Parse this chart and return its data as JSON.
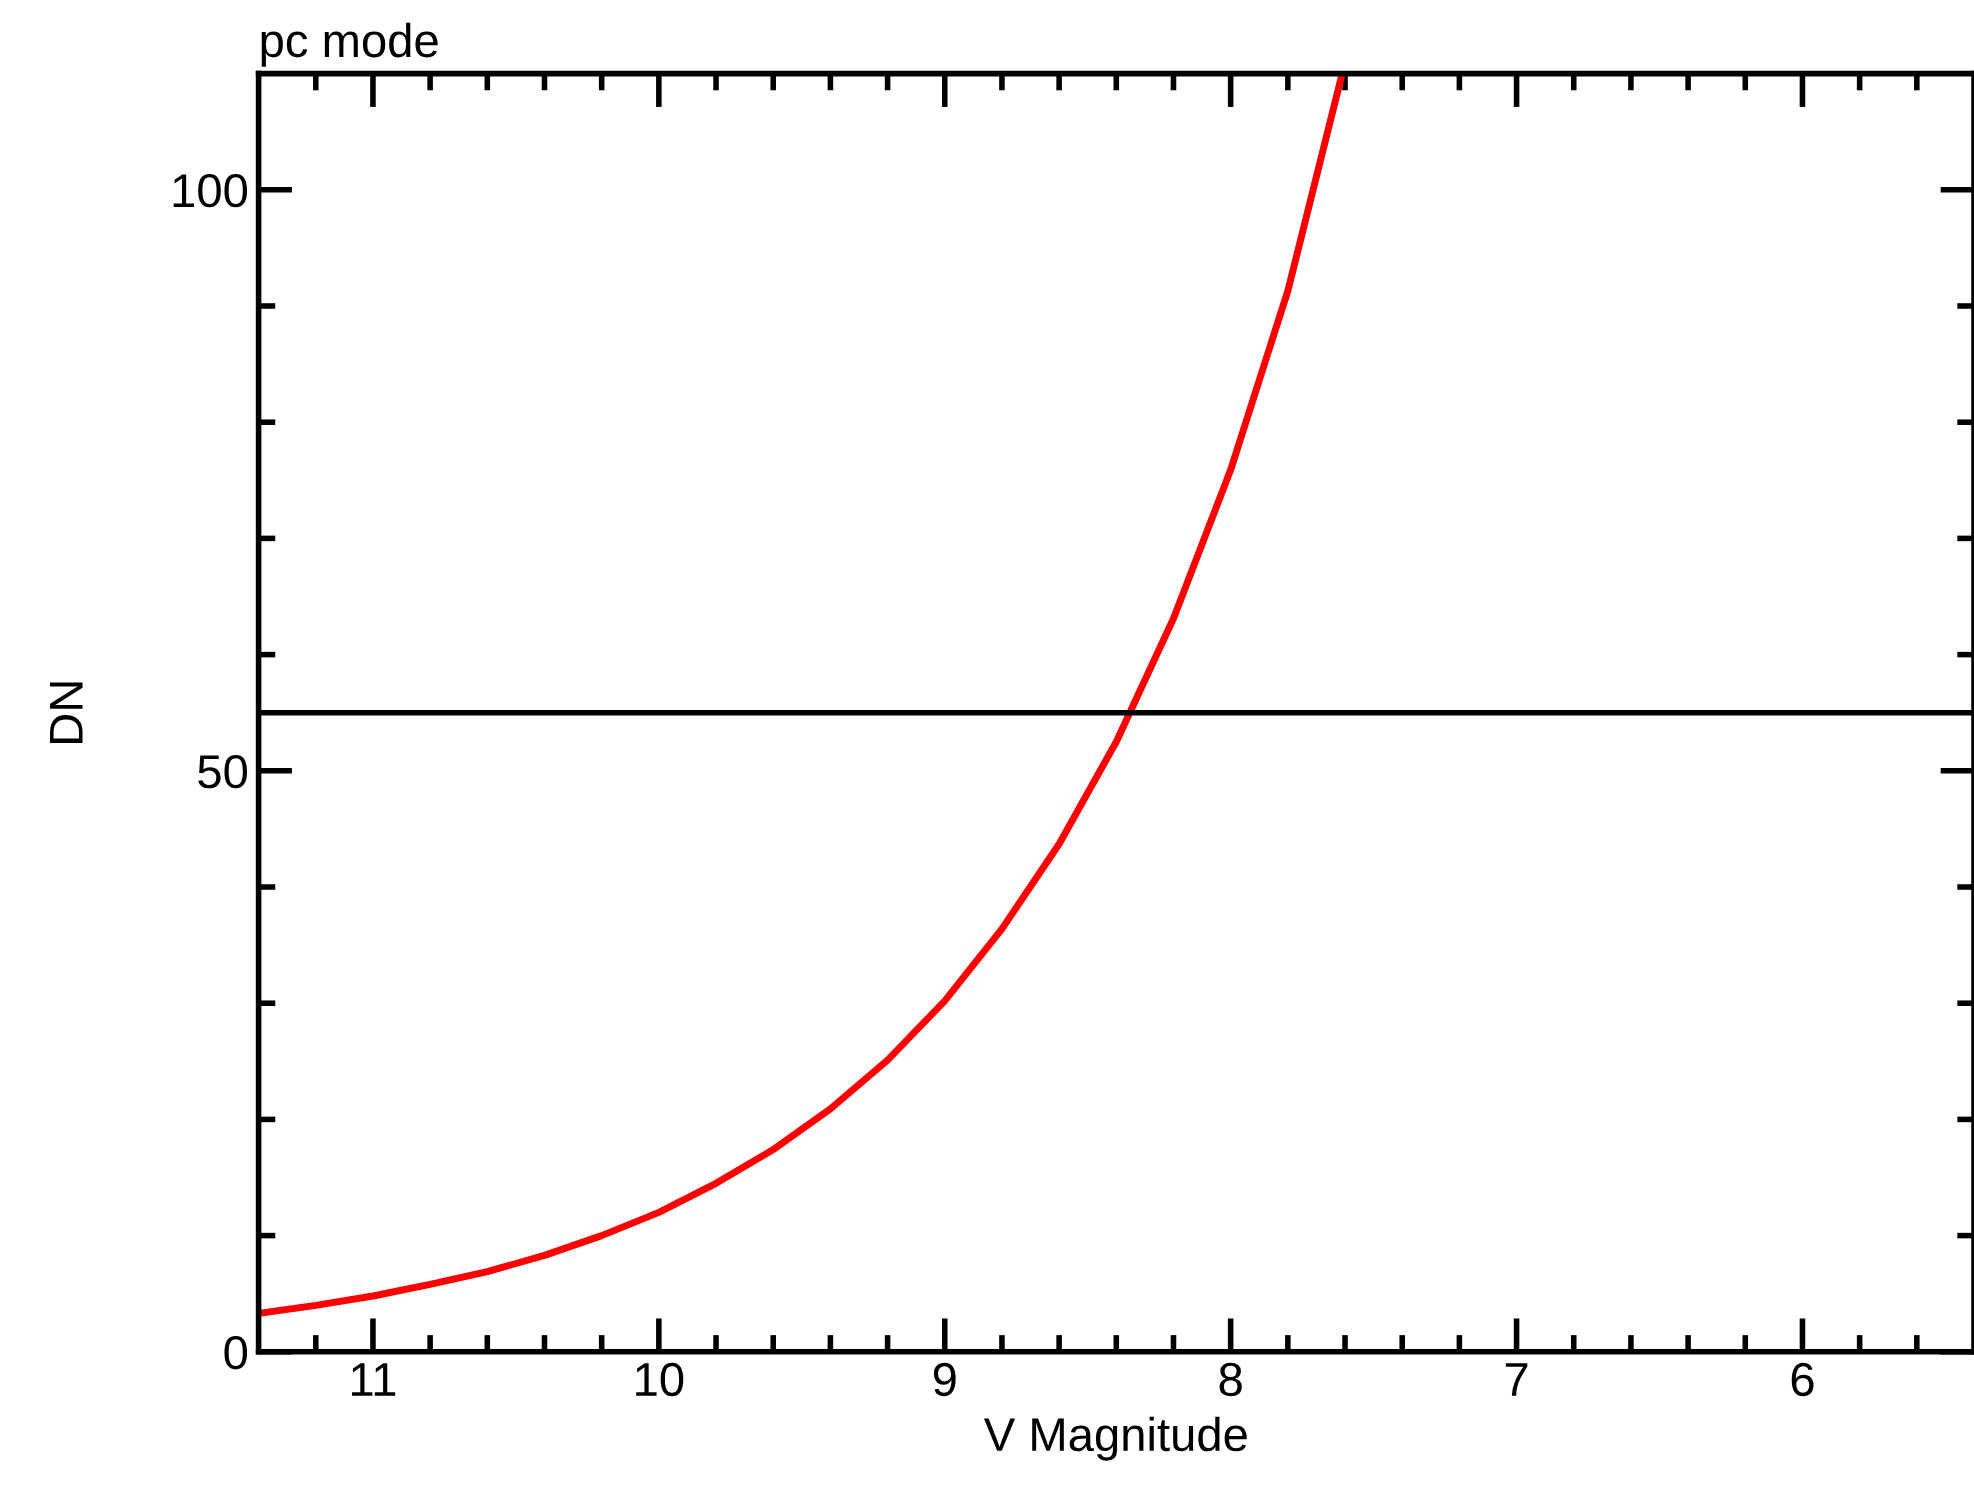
{
  "chart_data": {
    "type": "line",
    "title": "pc mode",
    "xlabel": "V Magnitude",
    "ylabel": "DN",
    "x": [
      11.4,
      11.2,
      11.0,
      10.8,
      10.6,
      10.4,
      10.2,
      10.0,
      9.8,
      9.6,
      9.4,
      9.2,
      9.0,
      8.8,
      8.6,
      8.4,
      8.2,
      8.0,
      7.8,
      7.61
    ],
    "series": [
      {
        "color": "#ff0000",
        "values": [
          3.3,
          4.0,
          4.8,
          5.8,
          6.9,
          8.3,
          10.0,
          12.0,
          14.5,
          17.4,
          20.9,
          25.1,
          30.2,
          36.4,
          43.7,
          52.5,
          63.1,
          75.9,
          91.3,
          110
        ]
      }
    ],
    "xlim": [
      11.4,
      5.4
    ],
    "ylim": [
      0,
      110
    ],
    "xticks": [
      {
        "value": 11.2,
        "label": null
      },
      11,
      {
        "value": 10.8,
        "label": null
      },
      {
        "value": 10.6,
        "label": null
      },
      {
        "value": 10.4,
        "label": null
      },
      {
        "value": 10.2,
        "label": null
      },
      10,
      {
        "value": 9.8,
        "label": null
      },
      {
        "value": 9.6,
        "label": null
      },
      {
        "value": 9.4,
        "label": null
      },
      {
        "value": 9.2,
        "label": null
      },
      9,
      {
        "value": 8.8,
        "label": null
      },
      {
        "value": 8.6,
        "label": null
      },
      {
        "value": 8.4,
        "label": null
      },
      {
        "value": 8.2,
        "label": null
      },
      8,
      {
        "value": 7.8,
        "label": null
      },
      {
        "value": 7.6,
        "label": null
      },
      {
        "value": 7.4,
        "label": null
      },
      {
        "value": 7.2,
        "label": null
      },
      7,
      {
        "value": 6.8,
        "label": null
      },
      {
        "value": 6.6,
        "label": null
      },
      {
        "value": 6.4,
        "label": null
      },
      {
        "value": 6.2,
        "label": null
      },
      6,
      {
        "value": 5.8,
        "label": null
      },
      {
        "value": 5.6,
        "label": null
      }
    ],
    "yticks": [
      0,
      {
        "value": 10,
        "label": null
      },
      {
        "value": 20,
        "label": null
      },
      {
        "value": 30,
        "label": null
      },
      {
        "value": 40,
        "label": null
      },
      50,
      {
        "value": 60,
        "label": null
      },
      {
        "value": 70,
        "label": null
      },
      {
        "value": 80,
        "label": null
      },
      {
        "value": 90,
        "label": null
      },
      100
    ],
    "ref_lines": [
      {
        "axis": "y",
        "value": 55,
        "color": "#000000"
      }
    ],
    "grid": false,
    "legend": false,
    "marker": "none",
    "line_style": "solid"
  }
}
